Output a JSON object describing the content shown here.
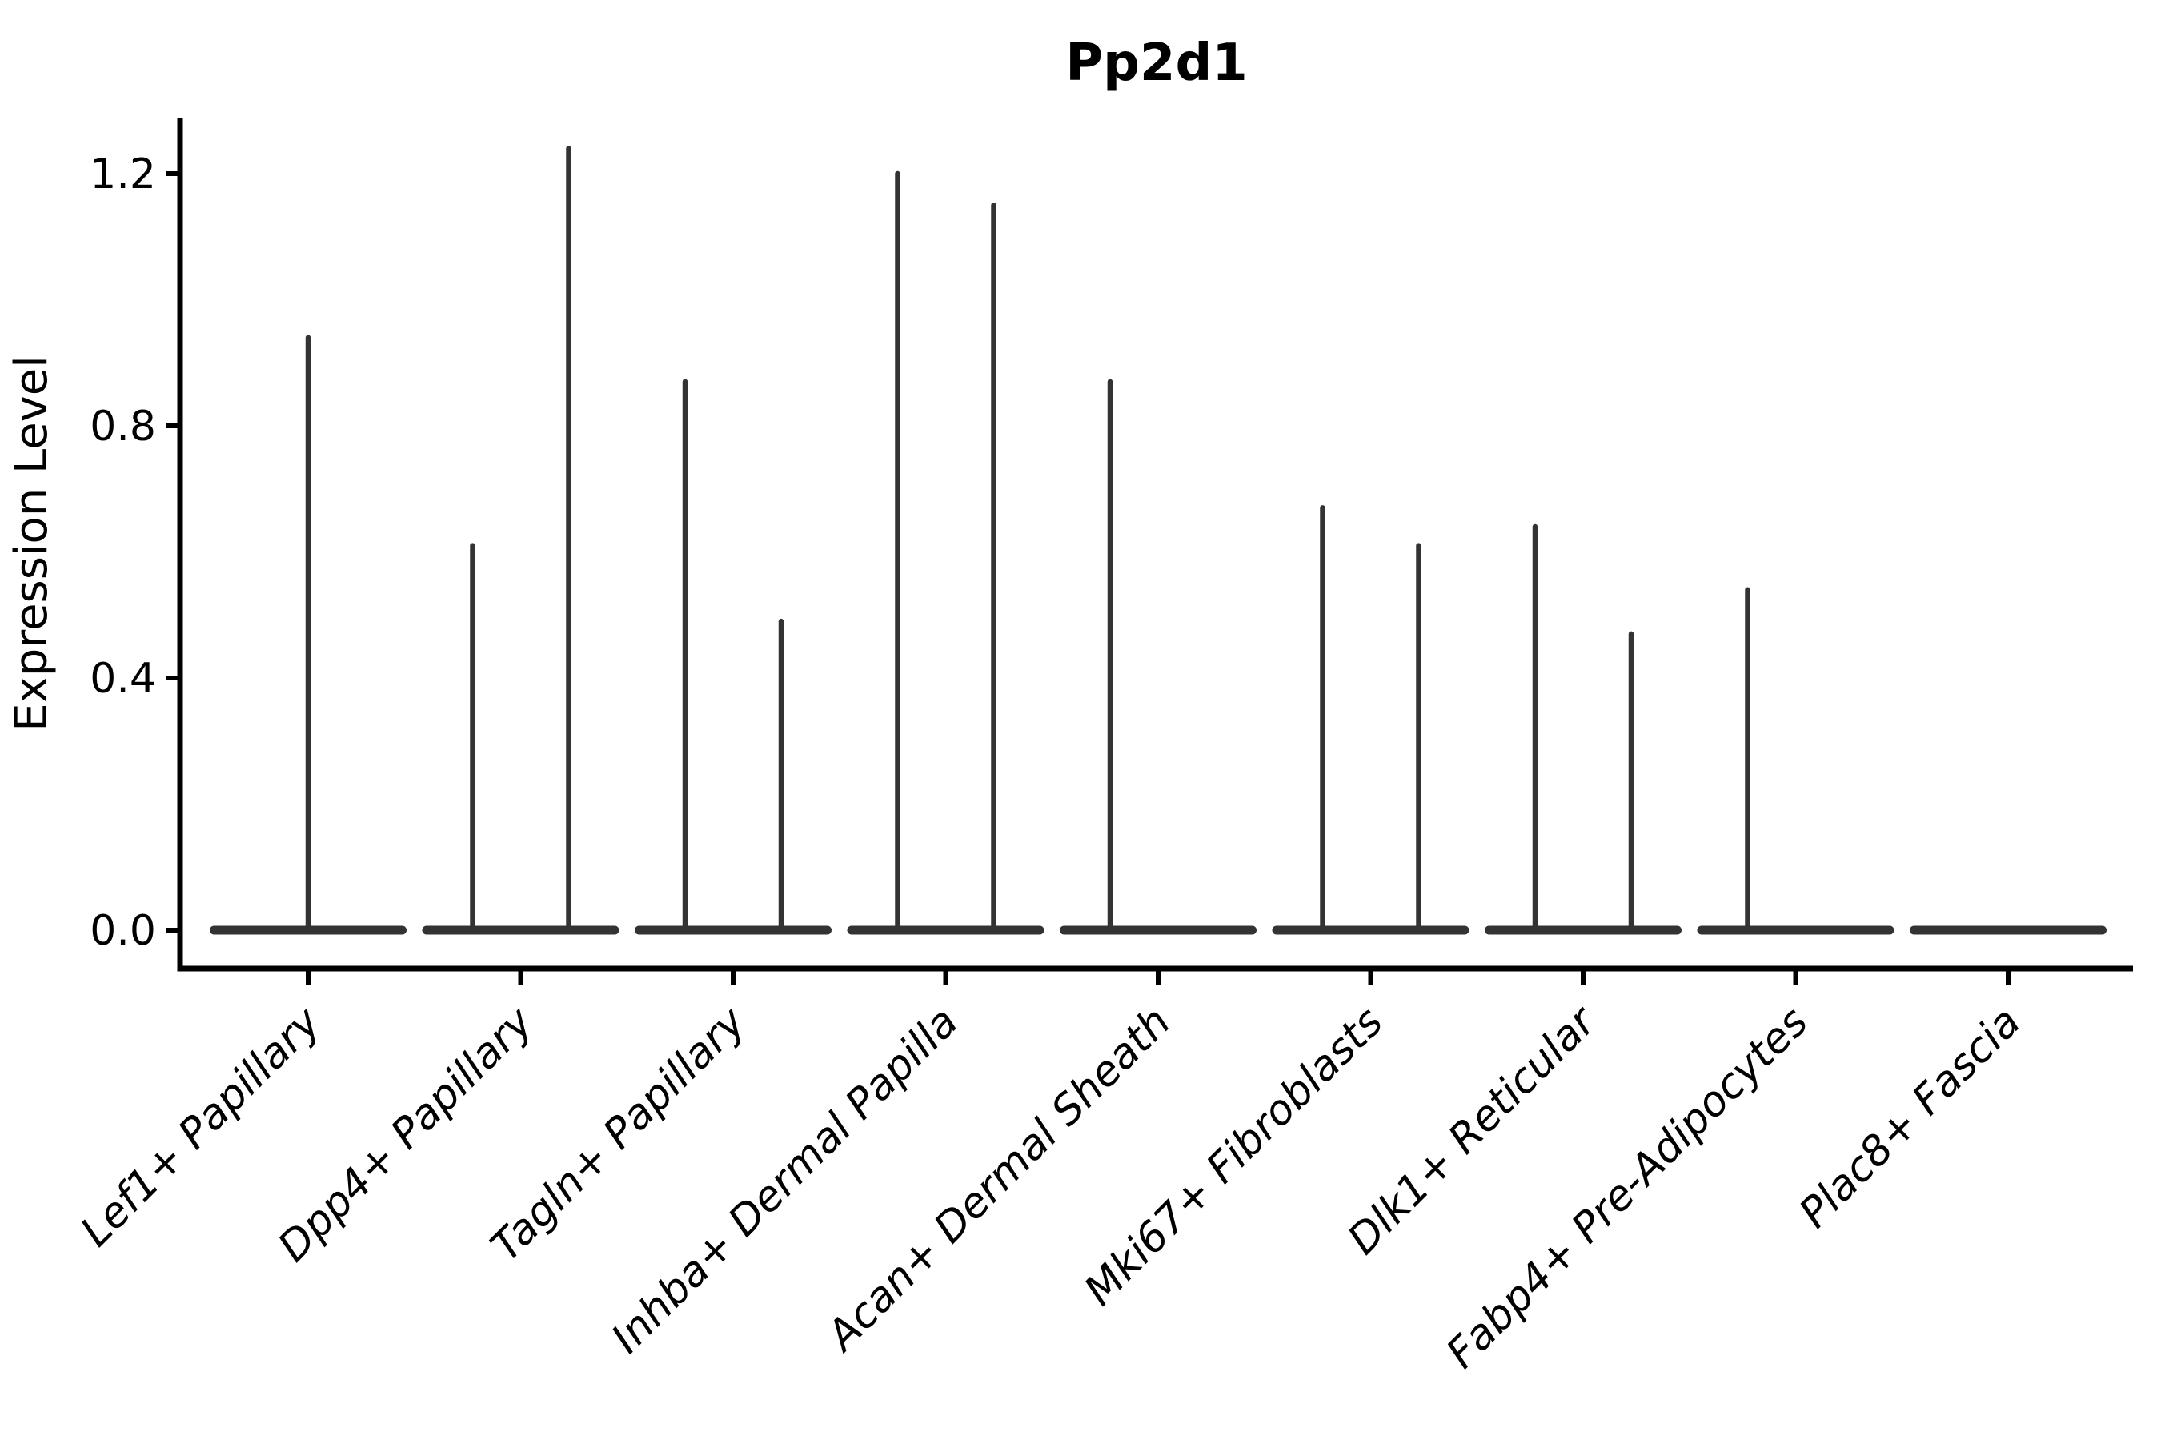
{
  "chart_data": {
    "type": "violin",
    "title": "Pp2d1",
    "ylabel": "Expression Level",
    "xlabel": "",
    "yticks": [
      0.0,
      0.4,
      0.8,
      1.2
    ],
    "ylim": [
      0,
      1.3
    ],
    "grid": false,
    "legend": null,
    "baseline_value": 0.0,
    "categories": [
      "Lef1+ Papillary",
      "Dpp4+ Papillary",
      "Tagln+ Papillary",
      "Inhba+ Dermal Papilla",
      "Acan+ Dermal Sheath",
      "Mki67+ Fibroblasts",
      "Dlk1+ Reticular",
      "Fabp4+ Pre-Adipocytes",
      "Plac8+ Fascia"
    ],
    "violins": [
      {
        "category": "Lef1+ Papillary",
        "spikes": [
          {
            "position": "center",
            "max": 0.94
          }
        ]
      },
      {
        "category": "Dpp4+ Papillary",
        "spikes": [
          {
            "position": "left",
            "max": 0.61
          },
          {
            "position": "right",
            "max": 1.24
          }
        ]
      },
      {
        "category": "Tagln+ Papillary",
        "spikes": [
          {
            "position": "left",
            "max": 0.87
          },
          {
            "position": "right",
            "max": 0.49
          }
        ]
      },
      {
        "category": "Inhba+ Dermal Papilla",
        "spikes": [
          {
            "position": "left",
            "max": 1.2
          },
          {
            "position": "right",
            "max": 1.15
          }
        ]
      },
      {
        "category": "Acan+ Dermal Sheath",
        "spikes": [
          {
            "position": "left",
            "max": 0.87
          }
        ]
      },
      {
        "category": "Mki67+ Fibroblasts",
        "spikes": [
          {
            "position": "left",
            "max": 0.67
          },
          {
            "position": "right",
            "max": 0.61
          }
        ]
      },
      {
        "category": "Dlk1+ Reticular",
        "spikes": [
          {
            "position": "left",
            "max": 0.64
          },
          {
            "position": "right",
            "max": 0.47
          }
        ]
      },
      {
        "category": "Fabp4+ Pre-Adipocytes",
        "spikes": [
          {
            "position": "left",
            "max": 0.54
          }
        ]
      },
      {
        "category": "Plac8+ Fascia",
        "spikes": []
      }
    ],
    "colors": {
      "violin": "#333333",
      "axis": "#000000",
      "text": "#000000"
    }
  }
}
